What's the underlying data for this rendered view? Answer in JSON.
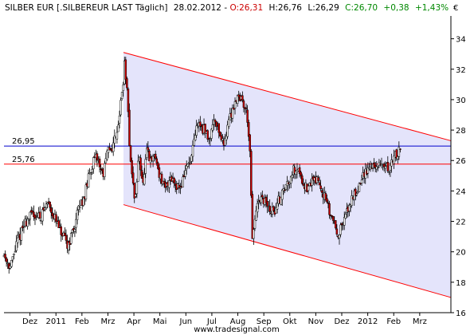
{
  "header": {
    "symbol": "SILBER EUR [.SILBEREUR LAST Täglich]",
    "date": "28.02.2012",
    "open_label": "O:26,31",
    "high_label": "H:26,76",
    "low_label": "L:26,29",
    "close_label": "C:26,70",
    "change_label": "+0,38",
    "change_pct_label": "+1,43%",
    "currency": "€",
    "colors": {
      "open": "#cc0000",
      "close": "#008800",
      "text": "#000000"
    }
  },
  "watermark": "www.tradesignal.com",
  "colors": {
    "channel_fill": "#e4e4fb",
    "channel_line": "#ff0000",
    "resistance_line": "#0000cc",
    "support_line": "#ff0000",
    "candle_up": "#ffffff",
    "candle_down": "#cc0000",
    "wick": "#000000",
    "grid": "#a0a0a0"
  },
  "chart_data": {
    "type": "candlestick",
    "title": "SILBER EUR [.SILBEREUR LAST Täglich]",
    "ylabel": "€",
    "ylim": [
      16,
      35.5
    ],
    "yticks": [
      16,
      18,
      20,
      22,
      24,
      26,
      28,
      30,
      32,
      34
    ],
    "grid": false,
    "x_tick_labels": [
      "Dez",
      "2011",
      "Feb",
      "Mrz",
      "Apr",
      "Mai",
      "Jun",
      "Jul",
      "Aug",
      "Sep",
      "Okt",
      "Nov",
      "Dez",
      "2012",
      "Feb",
      "Mrz"
    ],
    "x_tick_months": [
      1,
      2,
      3,
      4,
      5,
      6,
      7,
      8,
      9,
      10,
      11,
      12,
      13,
      14,
      15,
      16
    ],
    "xlim": [
      0,
      17.2
    ],
    "horizontal_lines": [
      {
        "value": 26.95,
        "label": "26,95",
        "color": "#0000cc"
      },
      {
        "value": 25.76,
        "label": "25,76",
        "color": "#ff0000"
      }
    ],
    "channel": {
      "upper": {
        "start": [
          4.6,
          33.1
        ],
        "end": [
          17.2,
          27.3
        ]
      },
      "lower": {
        "start": [
          4.6,
          23.1
        ],
        "end": [
          17.2,
          17.0
        ]
      }
    },
    "price_anchors": [
      [
        0.0,
        19.8
      ],
      [
        0.25,
        19.0
      ],
      [
        0.5,
        20.6
      ],
      [
        0.8,
        21.9
      ],
      [
        1.1,
        22.5
      ],
      [
        1.4,
        22.3
      ],
      [
        1.7,
        23.3
      ],
      [
        2.0,
        22.0
      ],
      [
        2.2,
        21.2
      ],
      [
        2.45,
        20.4
      ],
      [
        2.7,
        21.6
      ],
      [
        2.9,
        23.0
      ],
      [
        3.1,
        23.7
      ],
      [
        3.25,
        24.8
      ],
      [
        3.4,
        25.8
      ],
      [
        3.6,
        26.2
      ],
      [
        3.8,
        25.0
      ],
      [
        4.0,
        26.6
      ],
      [
        4.2,
        27.0
      ],
      [
        4.4,
        28.5
      ],
      [
        4.55,
        30.5
      ],
      [
        4.65,
        32.5
      ],
      [
        4.75,
        30.0
      ],
      [
        4.85,
        26.5
      ],
      [
        4.95,
        24.6
      ],
      [
        5.05,
        23.3
      ],
      [
        5.2,
        26.5
      ],
      [
        5.35,
        24.3
      ],
      [
        5.5,
        26.6
      ],
      [
        5.65,
        25.8
      ],
      [
        5.8,
        26.4
      ],
      [
        6.0,
        25.0
      ],
      [
        6.2,
        24.0
      ],
      [
        6.4,
        25.0
      ],
      [
        6.6,
        24.5
      ],
      [
        6.8,
        24.2
      ],
      [
        7.0,
        25.5
      ],
      [
        7.2,
        26.0
      ],
      [
        7.45,
        28.5
      ],
      [
        7.7,
        28.0
      ],
      [
        7.9,
        27.4
      ],
      [
        8.1,
        28.9
      ],
      [
        8.3,
        27.8
      ],
      [
        8.45,
        27.0
      ],
      [
        8.6,
        28.3
      ],
      [
        8.8,
        29.4
      ],
      [
        9.0,
        30.4
      ],
      [
        9.2,
        29.8
      ],
      [
        9.35,
        29.1
      ],
      [
        9.45,
        27.2
      ],
      [
        9.5,
        24.5
      ],
      [
        9.55,
        20.5
      ],
      [
        9.65,
        22.2
      ],
      [
        9.8,
        23.2
      ],
      [
        10.0,
        23.4
      ],
      [
        10.2,
        22.8
      ],
      [
        10.4,
        22.6
      ],
      [
        10.6,
        23.5
      ],
      [
        10.9,
        24.5
      ],
      [
        11.1,
        25.3
      ],
      [
        11.3,
        25.6
      ],
      [
        11.5,
        24.6
      ],
      [
        11.7,
        24.0
      ],
      [
        11.9,
        24.9
      ],
      [
        12.1,
        24.6
      ],
      [
        12.3,
        23.8
      ],
      [
        12.5,
        22.7
      ],
      [
        12.7,
        22.0
      ],
      [
        12.85,
        21.2
      ],
      [
        13.0,
        21.6
      ],
      [
        13.2,
        22.6
      ],
      [
        13.4,
        23.6
      ],
      [
        13.6,
        24.1
      ],
      [
        13.8,
        24.9
      ],
      [
        14.0,
        25.5
      ],
      [
        14.2,
        25.7
      ],
      [
        14.4,
        25.5
      ],
      [
        14.6,
        25.8
      ],
      [
        14.8,
        25.4
      ],
      [
        14.95,
        26.0
      ],
      [
        15.1,
        26.4
      ],
      [
        15.25,
        26.7
      ]
    ]
  }
}
